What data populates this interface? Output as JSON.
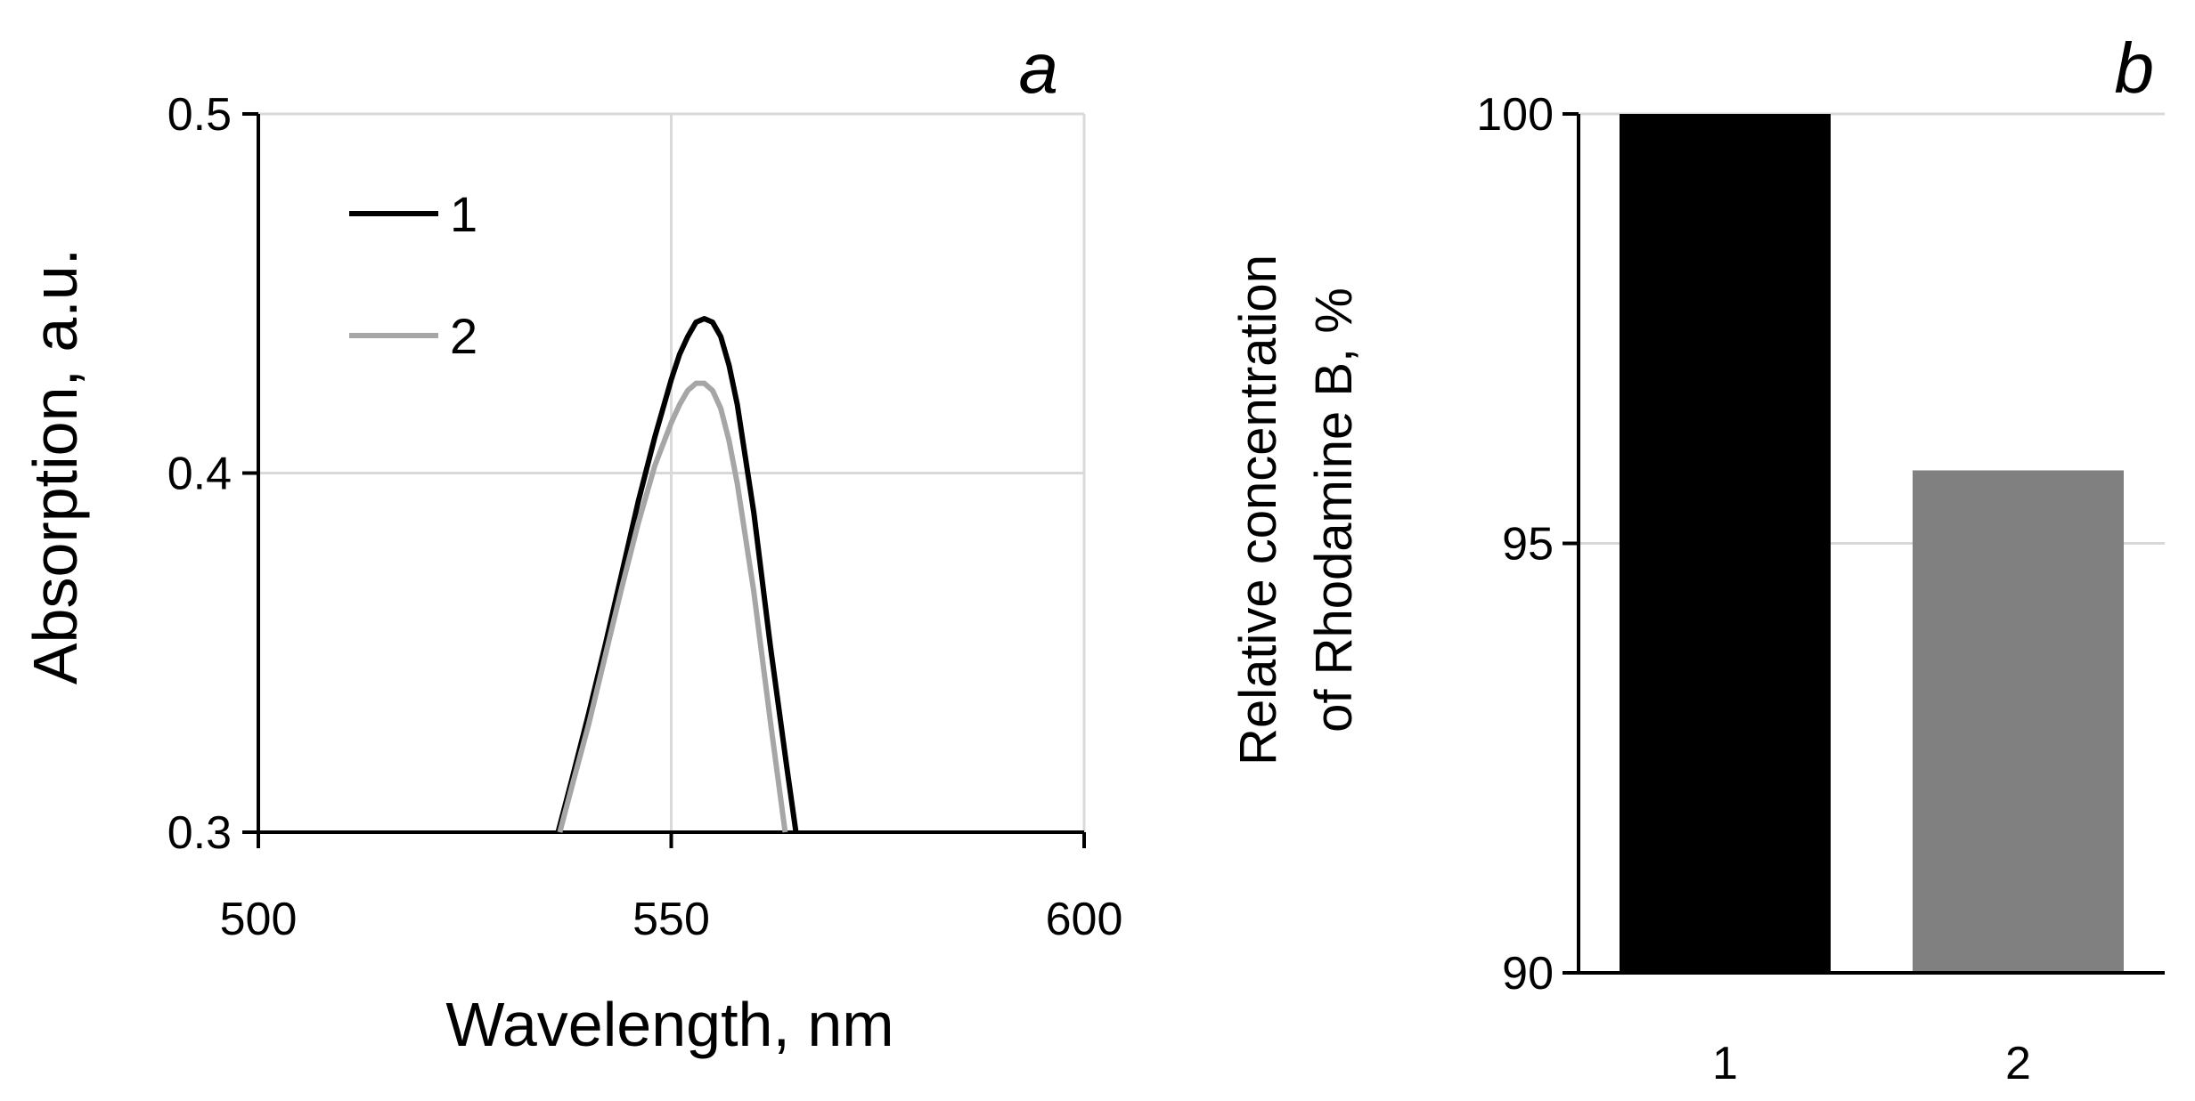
{
  "colors": {
    "series1": "#000000",
    "series2": "#a6a6a6",
    "bar1": "#000000",
    "bar2": "#808080",
    "grid": "#d9d9d9"
  },
  "chart_data": [
    {
      "panel": "a",
      "type": "line",
      "xlabel": "Wavelength, nm",
      "ylabel": "Absorption, a.u.",
      "xlim": [
        500,
        600
      ],
      "ylim": [
        0.3,
        0.5
      ],
      "xticks": [
        "500",
        "550",
        "600"
      ],
      "yticks": [
        "0.3",
        "0.4",
        "0.5"
      ],
      "grid": true,
      "legend": "top-left",
      "series": [
        {
          "name": "1",
          "x": [
            536.3,
            538,
            540,
            542,
            544,
            546,
            548,
            550,
            551,
            552,
            553,
            554,
            555,
            556,
            557,
            558,
            560,
            562,
            564,
            565.1
          ],
          "y": [
            0.3,
            0.315,
            0.333,
            0.352,
            0.372,
            0.392,
            0.41,
            0.426,
            0.433,
            0.438,
            0.442,
            0.443,
            0.442,
            0.438,
            0.43,
            0.419,
            0.389,
            0.352,
            0.318,
            0.3
          ]
        },
        {
          "name": "2",
          "x": [
            536.5,
            538,
            540,
            542,
            544,
            546,
            548,
            550,
            551,
            552,
            553,
            554,
            555,
            556,
            557,
            558,
            560,
            562,
            563.8
          ],
          "y": [
            0.3,
            0.313,
            0.33,
            0.349,
            0.368,
            0.386,
            0.402,
            0.414,
            0.419,
            0.423,
            0.425,
            0.425,
            0.423,
            0.418,
            0.409,
            0.397,
            0.367,
            0.331,
            0.3
          ]
        }
      ]
    },
    {
      "panel": "b",
      "type": "bar",
      "ylabel_lines": [
        "Relative concentration",
        "of Rhodamine  B, %"
      ],
      "categories": [
        "1",
        "2"
      ],
      "values": [
        100,
        95.85
      ],
      "ylim": [
        90,
        100
      ],
      "yticks": [
        "90",
        "95",
        "100"
      ],
      "grid": true
    }
  ]
}
